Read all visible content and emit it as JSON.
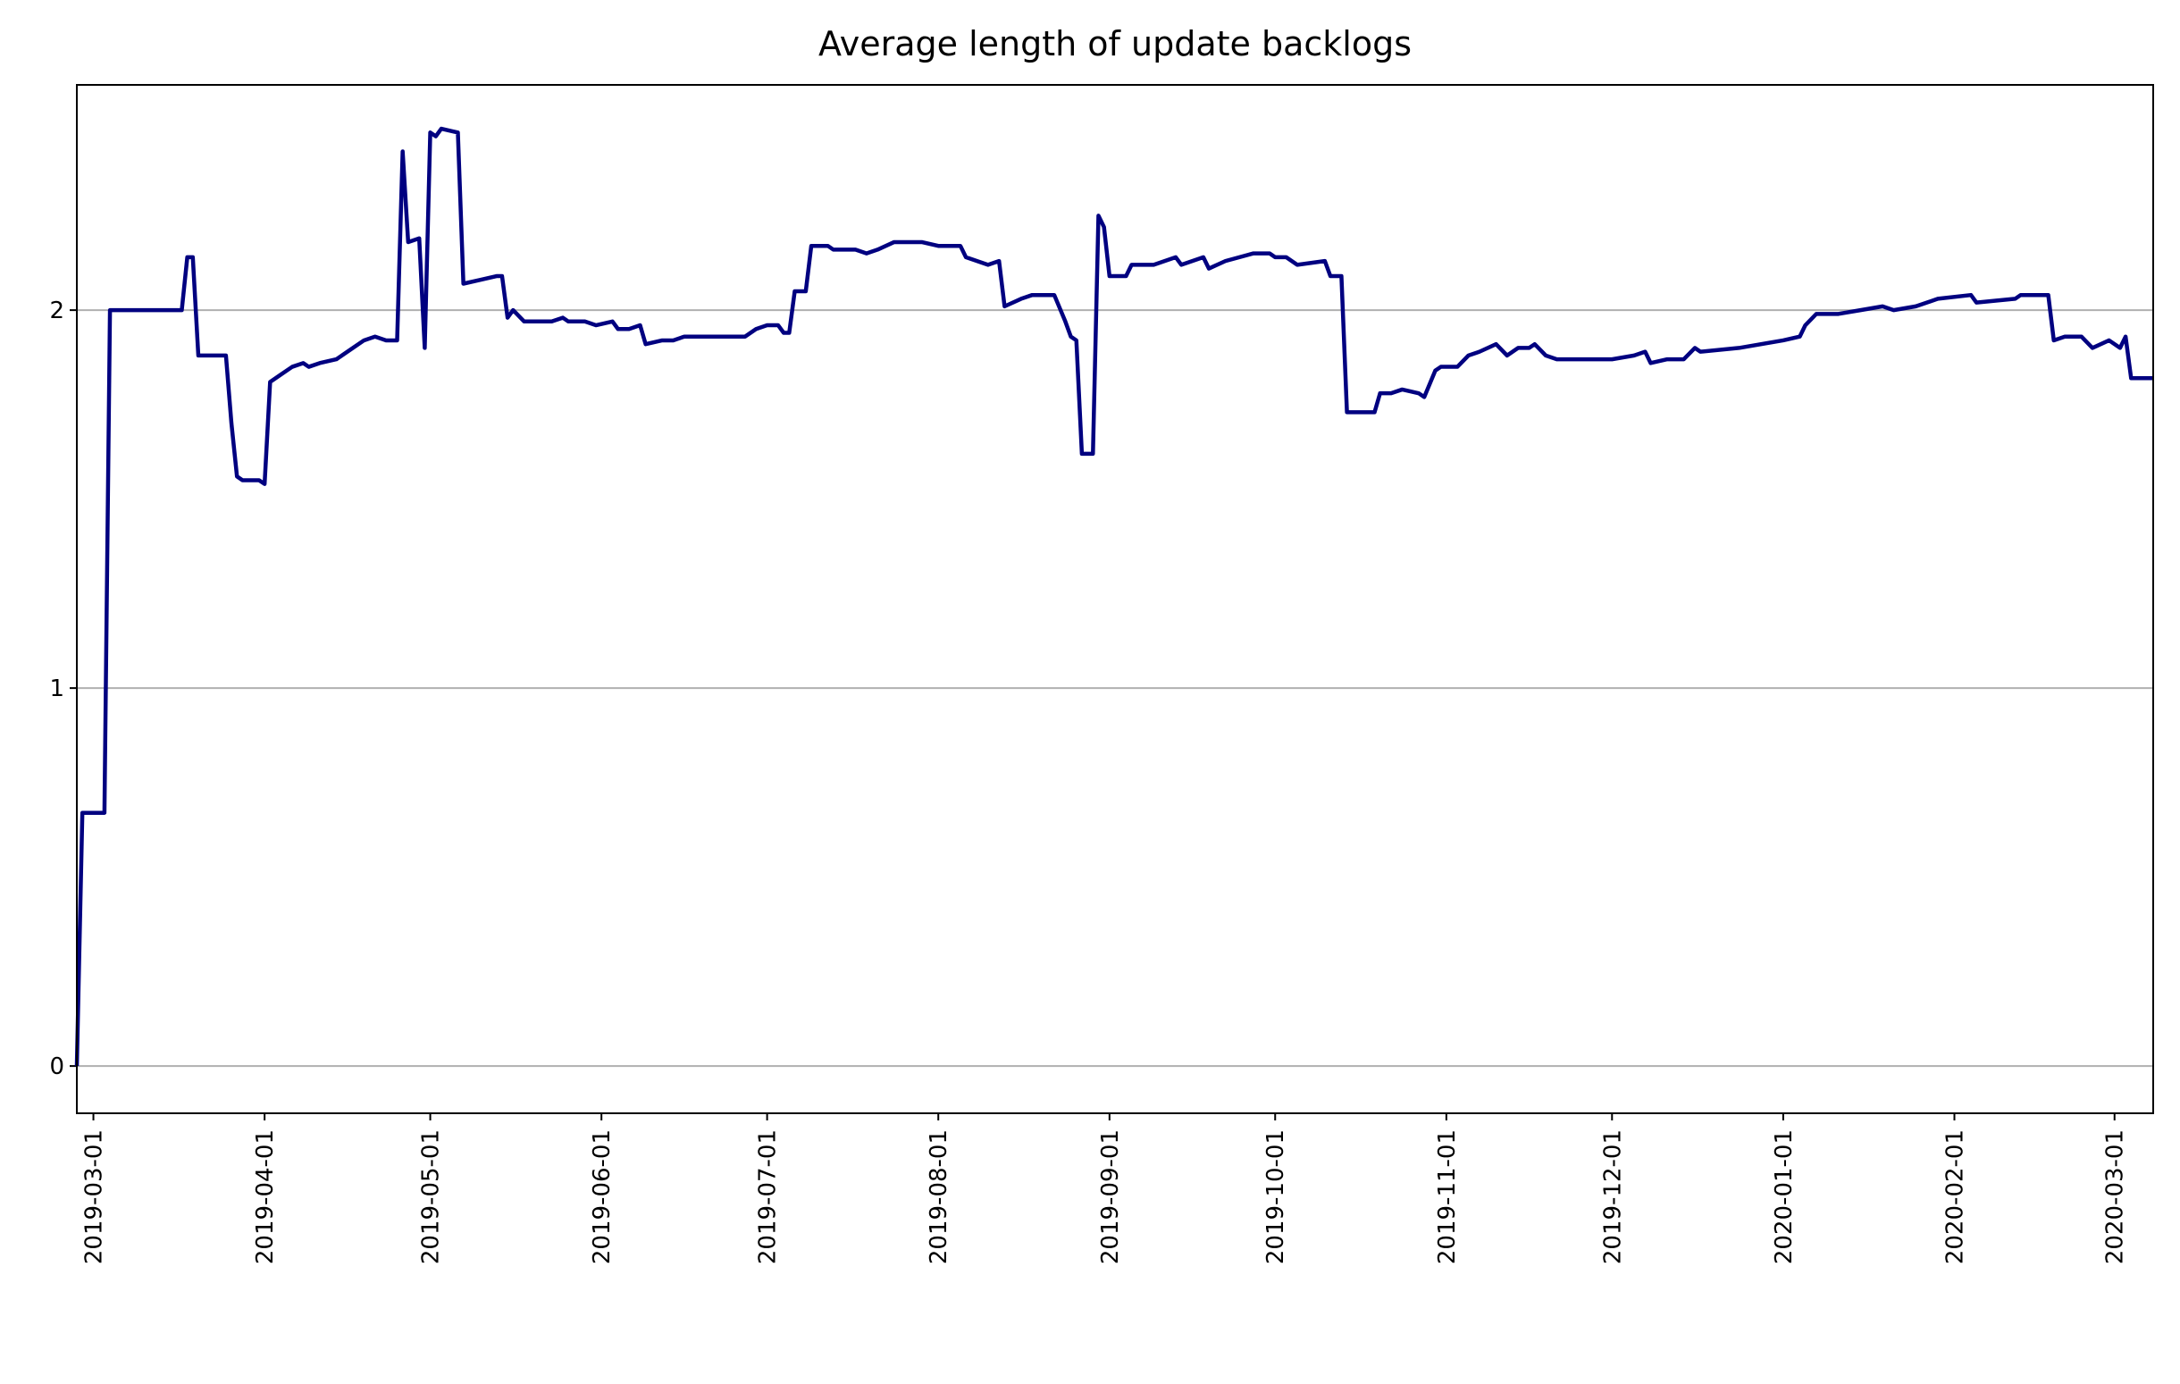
{
  "chart_data": {
    "type": "line",
    "title": "Average length of update backlogs",
    "x": [
      "2019-02-26",
      "2019-02-27",
      "2019-03-03",
      "2019-03-04",
      "2019-03-17",
      "2019-03-18",
      "2019-03-19",
      "2019-03-20",
      "2019-03-25",
      "2019-03-26",
      "2019-03-27",
      "2019-03-28",
      "2019-03-31",
      "2019-04-01",
      "2019-04-02",
      "2019-04-04",
      "2019-04-06",
      "2019-04-08",
      "2019-04-09",
      "2019-04-11",
      "2019-04-14",
      "2019-04-17",
      "2019-04-19",
      "2019-04-21",
      "2019-04-23",
      "2019-04-25",
      "2019-04-26",
      "2019-04-27",
      "2019-04-29",
      "2019-04-30",
      "2019-05-01",
      "2019-05-02",
      "2019-05-03",
      "2019-05-06",
      "2019-05-07",
      "2019-05-10",
      "2019-05-13",
      "2019-05-14",
      "2019-05-15",
      "2019-05-16",
      "2019-05-18",
      "2019-05-23",
      "2019-05-25",
      "2019-05-26",
      "2019-05-29",
      "2019-05-31",
      "2019-06-03",
      "2019-06-04",
      "2019-06-06",
      "2019-06-08",
      "2019-06-09",
      "2019-06-12",
      "2019-06-14",
      "2019-06-16",
      "2019-06-20",
      "2019-06-27",
      "2019-06-29",
      "2019-07-01",
      "2019-07-03",
      "2019-07-04",
      "2019-07-05",
      "2019-07-06",
      "2019-07-08",
      "2019-07-09",
      "2019-07-12",
      "2019-07-13",
      "2019-07-17",
      "2019-07-19",
      "2019-07-21",
      "2019-07-24",
      "2019-07-29",
      "2019-08-01",
      "2019-08-05",
      "2019-08-06",
      "2019-08-08",
      "2019-08-10",
      "2019-08-12",
      "2019-08-13",
      "2019-08-16",
      "2019-08-18",
      "2019-08-22",
      "2019-08-24",
      "2019-08-25",
      "2019-08-26",
      "2019-08-27",
      "2019-08-29",
      "2019-08-30",
      "2019-08-31",
      "2019-09-01",
      "2019-09-04",
      "2019-09-05",
      "2019-09-09",
      "2019-09-13",
      "2019-09-14",
      "2019-09-18",
      "2019-09-19",
      "2019-09-22",
      "2019-09-27",
      "2019-09-30",
      "2019-10-01",
      "2019-10-03",
      "2019-10-05",
      "2019-10-10",
      "2019-10-11",
      "2019-10-13",
      "2019-10-14",
      "2019-10-16",
      "2019-10-19",
      "2019-10-20",
      "2019-10-22",
      "2019-10-24",
      "2019-10-27",
      "2019-10-28",
      "2019-10-30",
      "2019-10-31",
      "2019-11-03",
      "2019-11-05",
      "2019-11-07",
      "2019-11-10",
      "2019-11-12",
      "2019-11-14",
      "2019-11-16",
      "2019-11-17",
      "2019-11-19",
      "2019-11-21",
      "2019-11-24",
      "2019-11-26",
      "2019-12-01",
      "2019-12-05",
      "2019-12-07",
      "2019-12-08",
      "2019-12-11",
      "2019-12-14",
      "2019-12-16",
      "2019-12-17",
      "2019-12-24",
      "2020-01-01",
      "2020-01-04",
      "2020-01-05",
      "2020-01-07",
      "2020-01-11",
      "2020-01-15",
      "2020-01-19",
      "2020-01-21",
      "2020-01-25",
      "2020-01-29",
      "2020-02-04",
      "2020-02-05",
      "2020-02-12",
      "2020-02-13",
      "2020-02-18",
      "2020-02-19",
      "2020-02-21",
      "2020-02-24",
      "2020-02-26",
      "2020-02-29",
      "2020-03-02",
      "2020-03-03",
      "2020-03-04",
      "2020-03-08"
    ],
    "values": [
      0,
      0.67,
      0.67,
      2.0,
      2.0,
      2.14,
      2.14,
      1.88,
      1.88,
      1.7,
      1.56,
      1.55,
      1.55,
      1.54,
      1.81,
      1.83,
      1.85,
      1.86,
      1.85,
      1.86,
      1.87,
      1.9,
      1.92,
      1.93,
      1.92,
      1.92,
      2.42,
      2.18,
      2.19,
      1.9,
      2.47,
      2.46,
      2.48,
      2.47,
      2.07,
      2.08,
      2.09,
      2.09,
      1.98,
      2.0,
      1.97,
      1.97,
      1.98,
      1.97,
      1.97,
      1.96,
      1.97,
      1.95,
      1.95,
      1.96,
      1.91,
      1.92,
      1.92,
      1.93,
      1.93,
      1.93,
      1.95,
      1.96,
      1.96,
      1.94,
      1.94,
      2.05,
      2.05,
      2.17,
      2.17,
      2.16,
      2.16,
      2.15,
      2.16,
      2.18,
      2.18,
      2.17,
      2.17,
      2.14,
      2.13,
      2.12,
      2.13,
      2.01,
      2.03,
      2.04,
      2.04,
      1.97,
      1.93,
      1.92,
      1.62,
      1.62,
      2.25,
      2.22,
      2.09,
      2.09,
      2.12,
      2.12,
      2.14,
      2.12,
      2.14,
      2.11,
      2.13,
      2.15,
      2.15,
      2.14,
      2.14,
      2.12,
      2.13,
      2.09,
      2.09,
      1.73,
      1.73,
      1.73,
      1.78,
      1.78,
      1.79,
      1.78,
      1.77,
      1.84,
      1.85,
      1.85,
      1.88,
      1.89,
      1.91,
      1.88,
      1.9,
      1.9,
      1.91,
      1.88,
      1.87,
      1.87,
      1.87,
      1.87,
      1.88,
      1.89,
      1.86,
      1.87,
      1.87,
      1.9,
      1.89,
      1.9,
      1.92,
      1.93,
      1.96,
      1.99,
      1.99,
      2.0,
      2.01,
      2.0,
      2.01,
      2.03,
      2.04,
      2.02,
      2.03,
      2.04,
      2.04,
      1.92,
      1.93,
      1.93,
      1.9,
      1.92,
      1.9,
      1.93,
      1.82,
      1.82
    ],
    "color": "#000080",
    "xlim": [
      "2019-02-26",
      "2020-03-08"
    ],
    "xticks": [
      "2019-03-01",
      "2019-04-01",
      "2019-05-01",
      "2019-06-01",
      "2019-07-01",
      "2019-08-01",
      "2019-09-01",
      "2019-10-01",
      "2019-11-01",
      "2019-12-01",
      "2020-01-01",
      "2020-02-01",
      "2020-03-01"
    ],
    "ylim": [
      -0.125,
      2.596
    ],
    "yticks": [
      0,
      1,
      2
    ],
    "grid": "y"
  }
}
